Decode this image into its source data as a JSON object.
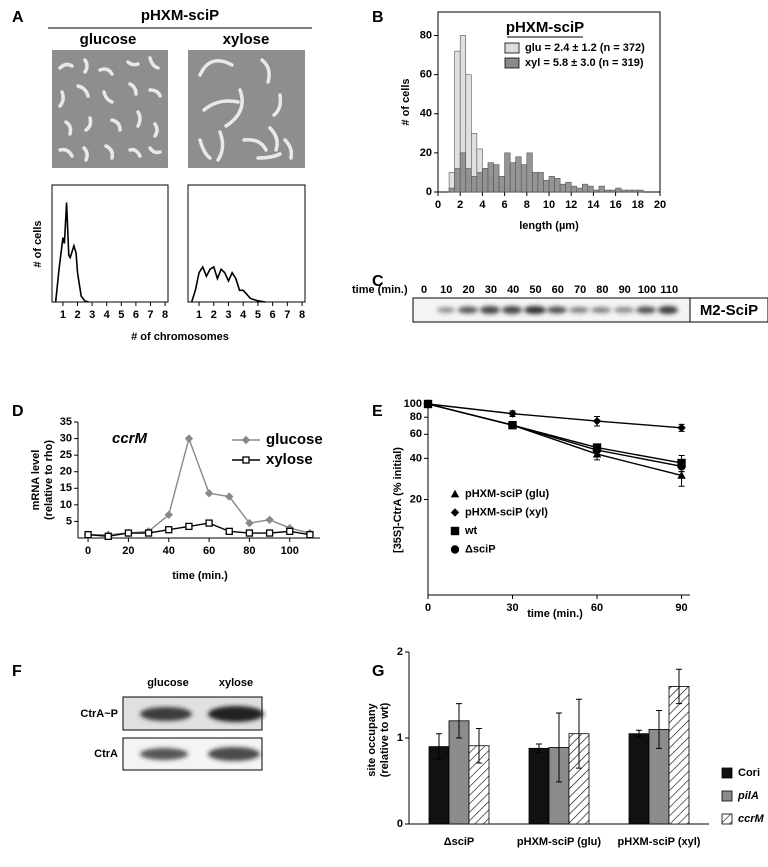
{
  "figure": {
    "panel_labels": [
      "A",
      "B",
      "C",
      "D",
      "E",
      "F",
      "G"
    ],
    "a_header": "pHXM-sciP",
    "a_columns": [
      "glucose",
      "xylose"
    ],
    "c_blot": {
      "axis_label": "time (min.)",
      "times": [
        0,
        10,
        20,
        30,
        40,
        50,
        60,
        70,
        80,
        90,
        100,
        110
      ],
      "band_label": "M2-SciP"
    },
    "f_blot": {
      "columns": [
        "glucose",
        "xylose"
      ],
      "rows": [
        "CtrA~P",
        "CtrA"
      ]
    }
  },
  "chart_data": [
    {
      "type": "line",
      "ylabel": "# of cells",
      "xlabel": "# of chromosomes",
      "x": [
        0.5,
        0.75,
        1,
        1.1,
        1.25,
        1.4,
        1.5,
        1.75,
        1.9,
        2,
        2.25,
        2.5,
        2.75
      ],
      "values": [
        0,
        30,
        55,
        50,
        85,
        40,
        38,
        48,
        42,
        25,
        5,
        1,
        0
      ],
      "color": "#000000",
      "xlim": [
        0.25,
        8.2
      ],
      "xticks": [
        1,
        2,
        3,
        4,
        5,
        6,
        7,
        8
      ],
      "ylim": [
        0,
        100
      ]
    },
    {
      "type": "line",
      "x": [
        0.5,
        0.75,
        1,
        1.25,
        1.5,
        1.75,
        2,
        2.25,
        2.5,
        2.75,
        3,
        3.25,
        3.5,
        3.75,
        4,
        4.5,
        5,
        5.5
      ],
      "values": [
        0,
        10,
        25,
        30,
        22,
        28,
        30,
        20,
        28,
        25,
        18,
        25,
        20,
        10,
        10,
        3,
        1,
        0
      ],
      "color": "#000000",
      "xlim": [
        0.25,
        8.2
      ],
      "xticks": [
        1,
        2,
        3,
        4,
        5,
        6,
        7,
        8
      ],
      "ylim": [
        0,
        100
      ]
    },
    {
      "type": "histogram",
      "ylabel": "# of cells",
      "xlabel": "length (µm)",
      "legend_title": "pHXM-sciP",
      "bins": [
        0,
        0.5,
        1,
        1.5,
        2,
        2.5,
        3,
        3.5,
        4,
        4.5,
        5,
        5.5,
        6,
        6.5,
        7,
        7.5,
        8,
        8.5,
        9,
        9.5,
        10,
        10.5,
        11,
        11.5,
        12,
        12.5,
        13,
        13.5,
        14,
        14.5,
        15,
        15.5,
        16,
        16.5,
        17,
        17.5,
        18,
        18.5,
        19,
        19.5,
        20
      ],
      "series": [
        {
          "name": "glu = 2.4 ± 1.2 (n = 372)",
          "color": "#dddddd",
          "values": [
            0,
            0,
            10,
            72,
            80,
            60,
            30,
            22,
            12,
            8,
            4,
            3,
            2,
            1,
            1,
            0,
            0,
            0,
            0,
            0,
            0,
            0,
            0,
            0,
            0,
            0,
            0,
            0,
            0,
            0,
            0,
            0,
            0,
            0,
            0,
            0,
            0,
            0,
            0,
            0
          ]
        },
        {
          "name": "xyl = 5.8 ± 3.0 (n = 319)",
          "color": "#8a8a8a",
          "values": [
            0,
            0,
            2,
            12,
            20,
            12,
            8,
            10,
            12,
            15,
            14,
            8,
            20,
            15,
            18,
            14,
            20,
            10,
            10,
            6,
            8,
            7,
            4,
            5,
            3,
            2,
            4,
            3,
            1,
            3,
            1,
            1,
            2,
            1,
            1,
            1,
            1,
            0,
            0,
            0
          ]
        }
      ],
      "xlim": [
        0,
        20
      ],
      "xticks": [
        0,
        2,
        4,
        6,
        8,
        10,
        12,
        14,
        16,
        18,
        20
      ],
      "ylim": [
        0,
        92
      ],
      "yticks": [
        0,
        20,
        40,
        60,
        80
      ]
    },
    {
      "type": "line",
      "annotation": "ccrM",
      "ylabel": [
        "mRNA level",
        "(relative to rho)"
      ],
      "xlabel": "time (min.)",
      "x": [
        0,
        10,
        20,
        30,
        40,
        50,
        60,
        70,
        80,
        90,
        100,
        110
      ],
      "series": [
        {
          "name": "glucose",
          "color": "#888888",
          "marker": "diamond",
          "values": [
            1,
            1,
            1.5,
            2,
            7,
            30,
            13.5,
            12.5,
            4.5,
            5.5,
            3,
            1.5
          ]
        },
        {
          "name": "xylose",
          "color": "#000000",
          "marker": "open-square",
          "values": [
            1,
            0.5,
            1.5,
            1.5,
            2.5,
            3.5,
            4.5,
            2,
            1.5,
            1.5,
            2,
            1
          ]
        }
      ],
      "xlim": [
        -5,
        115
      ],
      "xticks": [
        0,
        20,
        40,
        60,
        80,
        100
      ],
      "ylim": [
        0,
        35
      ],
      "yticks": [
        5,
        10,
        15,
        20,
        25,
        30,
        35
      ]
    },
    {
      "type": "line",
      "ylabel": "[35S]-CtrA (% initial)",
      "xlabel": "time (min.)",
      "log_scale": true,
      "x": [
        0,
        30,
        60,
        90
      ],
      "series": [
        {
          "name": "pHXM-sciP (glu)",
          "color": "#000000",
          "marker": "triangle",
          "values": [
            100,
            70,
            43,
            30
          ],
          "errors": [
            0,
            3,
            4,
            5
          ]
        },
        {
          "name": "pHXM-sciP (xyl)",
          "color": "#000000",
          "marker": "diamond",
          "values": [
            100,
            85,
            75,
            67
          ],
          "errors": [
            0,
            4,
            6,
            4
          ]
        },
        {
          "name": "wt",
          "color": "#000000",
          "marker": "square",
          "values": [
            100,
            70,
            48,
            37
          ],
          "errors": [
            0,
            3,
            2,
            5
          ]
        },
        {
          "name": "ΔsciP",
          "color": "#000000",
          "marker": "circle",
          "values": [
            100,
            70,
            46,
            35
          ],
          "errors": [
            0,
            3,
            2,
            3
          ]
        }
      ],
      "xlim": [
        0,
        93
      ],
      "xticks": [
        0,
        30,
        60,
        90
      ],
      "ylim": [
        4,
        100
      ],
      "yticks": [
        20,
        40,
        60,
        80,
        100
      ]
    },
    {
      "type": "bar",
      "ylabel": [
        "site occupany",
        "(relative to wt)"
      ],
      "categories": [
        "ΔsciP",
        "pHXM-sciP (glu)",
        "pHXM-sciP (xyl)"
      ],
      "series": [
        {
          "name": "Cori",
          "color": "#111111",
          "values": [
            0.9,
            0.88,
            1.05
          ],
          "errors": [
            0.15,
            0.05,
            0.04
          ]
        },
        {
          "name": "pilA",
          "color": "#8c8c8c",
          "values": [
            1.2,
            0.89,
            1.1
          ],
          "errors": [
            0.2,
            0.4,
            0.22
          ]
        },
        {
          "name": "ccrM",
          "color": "#ffffff",
          "pattern": "hatch",
          "values": [
            0.91,
            1.05,
            1.6
          ],
          "errors": [
            0.2,
            0.4,
            0.2
          ]
        }
      ],
      "ylim": [
        0,
        2
      ],
      "yticks": [
        0,
        1,
        2
      ]
    }
  ]
}
